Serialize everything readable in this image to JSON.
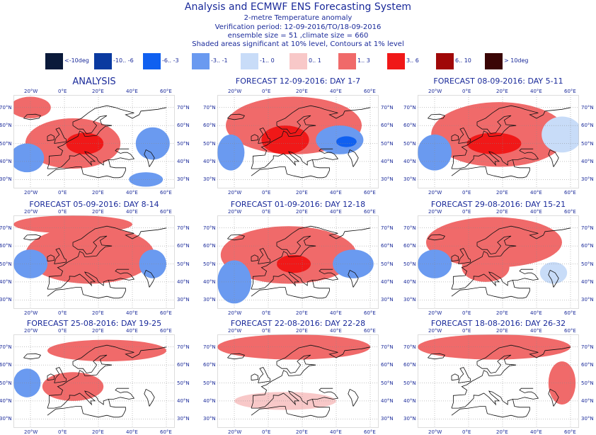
{
  "header": {
    "title": "Analysis and ECMWF ENS Forecasting System",
    "subtitle": "2-metre Temperature anomaly",
    "verification": "Verification period: 12-09-2016/TO/18-09-2016",
    "ensemble": "ensemble size = 51  ,climate size = 660",
    "significance": "Shaded areas significant at 10% level, Contours at 1% level"
  },
  "legend": [
    {
      "label": "<-10deg",
      "color": "#0a1a3a"
    },
    {
      "label": "-10.. -6",
      "color": "#0a3aa0"
    },
    {
      "label": "-6.. -3",
      "color": "#1060f0"
    },
    {
      "label": "-3.. -1",
      "color": "#6a9af0"
    },
    {
      "label": "-1.. 0",
      "color": "#c8dcf8"
    },
    {
      "label": "0.. 1",
      "color": "#f8c8c8"
    },
    {
      "label": "1.. 3",
      "color": "#f06a6a"
    },
    {
      "label": "3.. 6",
      "color": "#f01818"
    },
    {
      "label": "6.. 10",
      "color": "#a00808"
    },
    {
      "label": "> 10deg",
      "color": "#3a0505"
    }
  ],
  "axis_labels": {
    "lon": [
      "20°W",
      "0°E",
      "20°E",
      "40°E",
      "60°E"
    ],
    "lat": [
      "70°N",
      "60°N",
      "50°N",
      "40°N",
      "30°N"
    ]
  },
  "panels": [
    {
      "title": "ANALYSIS"
    },
    {
      "title": "FORECAST 12-09-2016: DAY 1-7"
    },
    {
      "title": "FORECAST 08-09-2016: DAY 5-11"
    },
    {
      "title": "FORECAST 05-09-2016: DAY 8-14"
    },
    {
      "title": "FORECAST 01-09-2016: DAY 12-18"
    },
    {
      "title": "FORECAST 29-08-2016: DAY 15-21"
    },
    {
      "title": "FORECAST 25-08-2016: DAY 19-25"
    },
    {
      "title": "FORECAST 22-08-2016: DAY 22-28"
    },
    {
      "title": "FORECAST 18-08-2016: DAY 26-32"
    }
  ],
  "chart_data": {
    "type": "heatmap",
    "variable": "2-metre temperature anomaly",
    "units": "deg",
    "lon_range": [
      -30,
      65
    ],
    "lat_range": [
      25,
      77
    ],
    "panels": [
      {
        "title": "ANALYSIS",
        "regions": [
          {
            "lon": 5,
            "lat": 50,
            "rlon": 28,
            "rlat": 14,
            "anom": 2
          },
          {
            "lon": 12,
            "lat": 50,
            "rlon": 11,
            "rlat": 6,
            "anom": 4.5
          },
          {
            "lon": -20,
            "lat": 70,
            "rlon": 12,
            "rlat": 6,
            "anom": 2
          },
          {
            "lon": -22,
            "lat": 42,
            "rlon": 10,
            "rlat": 8,
            "anom": -2
          },
          {
            "lon": 52,
            "lat": 50,
            "rlon": 10,
            "rlat": 9,
            "anom": -2
          },
          {
            "lon": 48,
            "lat": 30,
            "rlon": 10,
            "rlat": 4,
            "anom": -2
          }
        ]
      },
      {
        "title": "FORECAST 12-09-2016: DAY 1-7",
        "regions": [
          {
            "lon": 15,
            "lat": 60,
            "rlon": 40,
            "rlat": 16,
            "anom": 2
          },
          {
            "lon": 10,
            "lat": 52,
            "rlon": 14,
            "rlat": 8,
            "anom": 4.5
          },
          {
            "lon": 42,
            "lat": 52,
            "rlon": 14,
            "rlat": 8,
            "anom": -2
          },
          {
            "lon": 46,
            "lat": 51,
            "rlon": 6,
            "rlat": 3,
            "anom": -4.5
          },
          {
            "lon": -22,
            "lat": 45,
            "rlon": 8,
            "rlat": 10,
            "anom": -2
          }
        ]
      },
      {
        "title": "FORECAST 08-09-2016: DAY 5-11",
        "regions": [
          {
            "lon": 18,
            "lat": 55,
            "rlon": 40,
            "rlat": 18,
            "anom": 2
          },
          {
            "lon": 15,
            "lat": 50,
            "rlon": 16,
            "rlat": 6,
            "anom": 4.5
          },
          {
            "lon": 55,
            "lat": 55,
            "rlon": 12,
            "rlat": 10,
            "anom": -1
          },
          {
            "lon": -20,
            "lat": 45,
            "rlon": 10,
            "rlat": 10,
            "anom": -2
          }
        ]
      },
      {
        "title": "FORECAST 05-09-2016: DAY 8-14",
        "regions": [
          {
            "lon": 15,
            "lat": 55,
            "rlon": 38,
            "rlat": 16,
            "anom": 2
          },
          {
            "lon": 5,
            "lat": 72,
            "rlon": 35,
            "rlat": 5,
            "anom": 2
          },
          {
            "lon": -20,
            "lat": 50,
            "rlon": 10,
            "rlat": 8,
            "anom": -2
          },
          {
            "lon": 52,
            "lat": 50,
            "rlon": 8,
            "rlat": 8,
            "anom": -2
          }
        ]
      },
      {
        "title": "FORECAST 01-09-2016: DAY 12-18",
        "regions": [
          {
            "lon": 12,
            "lat": 55,
            "rlon": 40,
            "rlat": 16,
            "anom": 2
          },
          {
            "lon": 15,
            "lat": 50,
            "rlon": 10,
            "rlat": 5,
            "anom": 4.5
          },
          {
            "lon": 50,
            "lat": 50,
            "rlon": 12,
            "rlat": 8,
            "anom": -2
          },
          {
            "lon": -20,
            "lat": 40,
            "rlon": 10,
            "rlat": 12,
            "anom": -2
          }
        ]
      },
      {
        "title": "FORECAST 29-08-2016: DAY 15-21",
        "regions": [
          {
            "lon": 15,
            "lat": 62,
            "rlon": 40,
            "rlat": 14,
            "anom": 2
          },
          {
            "lon": 10,
            "lat": 48,
            "rlon": 14,
            "rlat": 8,
            "anom": 2
          },
          {
            "lon": -20,
            "lat": 50,
            "rlon": 10,
            "rlat": 8,
            "anom": -2
          },
          {
            "lon": 50,
            "lat": 45,
            "rlon": 8,
            "rlat": 6,
            "anom": -0.5
          }
        ]
      },
      {
        "title": "FORECAST 25-08-2016: DAY 19-25",
        "regions": [
          {
            "lon": 5,
            "lat": 48,
            "rlon": 18,
            "rlat": 8,
            "anom": 2
          },
          {
            "lon": 25,
            "lat": 68,
            "rlon": 35,
            "rlat": 6,
            "anom": 2
          },
          {
            "lon": -22,
            "lat": 50,
            "rlon": 8,
            "rlat": 8,
            "anom": -2
          }
        ]
      },
      {
        "title": "FORECAST 22-08-2016: DAY 22-28",
        "regions": [
          {
            "lon": 15,
            "lat": 70,
            "rlon": 45,
            "rlat": 7,
            "anom": 2
          },
          {
            "lon": 10,
            "lat": 40,
            "rlon": 30,
            "rlat": 5,
            "anom": 0.5
          }
        ]
      },
      {
        "title": "FORECAST 18-08-2016: DAY 26-32",
        "regions": [
          {
            "lon": 15,
            "lat": 70,
            "rlon": 45,
            "rlat": 7,
            "anom": 2
          },
          {
            "lon": 55,
            "lat": 50,
            "rlon": 8,
            "rlat": 12,
            "anom": 2
          }
        ]
      }
    ]
  }
}
